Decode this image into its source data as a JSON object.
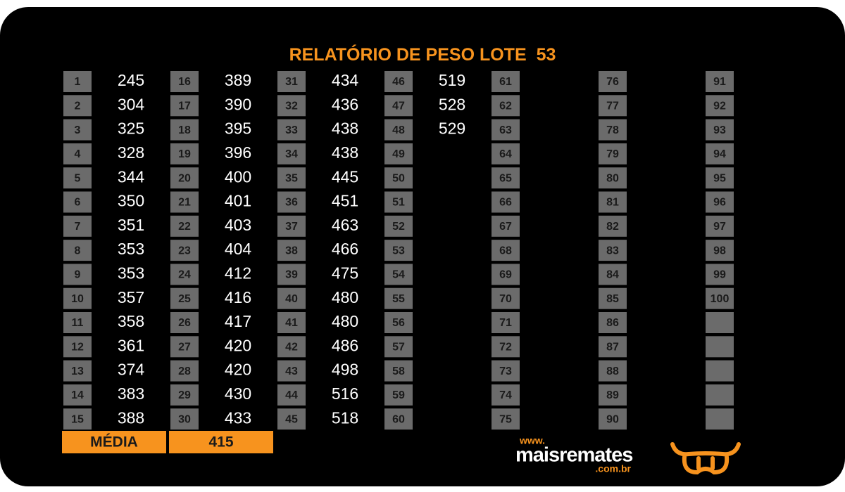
{
  "header": {
    "title": "RELATÓRIO DE PESO LOTE",
    "lote": "53"
  },
  "table": {
    "columns": [
      {
        "numbers": [
          1,
          2,
          3,
          4,
          5,
          6,
          7,
          8,
          9,
          10,
          11,
          12,
          13,
          14,
          15
        ],
        "weights": [
          245,
          304,
          325,
          328,
          344,
          350,
          351,
          353,
          353,
          357,
          358,
          361,
          374,
          383,
          388
        ]
      },
      {
        "numbers": [
          16,
          17,
          18,
          19,
          20,
          21,
          22,
          23,
          24,
          25,
          26,
          27,
          28,
          29,
          30
        ],
        "weights": [
          389,
          390,
          395,
          396,
          400,
          401,
          403,
          404,
          412,
          416,
          417,
          420,
          420,
          430,
          433
        ]
      },
      {
        "numbers": [
          31,
          32,
          33,
          34,
          35,
          36,
          37,
          38,
          39,
          40,
          41,
          42,
          43,
          44,
          45
        ],
        "weights": [
          434,
          436,
          438,
          438,
          445,
          451,
          463,
          466,
          475,
          480,
          480,
          486,
          498,
          516,
          518
        ]
      },
      {
        "numbers": [
          46,
          47,
          48,
          49,
          50,
          51,
          52,
          53,
          54,
          55,
          56,
          57,
          58,
          59,
          60
        ],
        "weights": [
          519,
          528,
          529
        ]
      },
      {
        "numbers": [
          61,
          62,
          63,
          64,
          65,
          66,
          67,
          68,
          69,
          70,
          71,
          72,
          73,
          74,
          75
        ],
        "weights": []
      },
      {
        "numbers": [
          76,
          77,
          78,
          79,
          80,
          81,
          82,
          83,
          84,
          85,
          86,
          87,
          88,
          89,
          90
        ],
        "weights": []
      },
      {
        "numbers": [
          91,
          92,
          93,
          94,
          95,
          96,
          97,
          98,
          99,
          100
        ],
        "weights": []
      }
    ]
  },
  "footer": {
    "average_label": "MÉDIA",
    "average_value": 415
  },
  "logo": {
    "prefix": "www.",
    "name": "maisremates",
    "suffix": ".com.br"
  }
}
